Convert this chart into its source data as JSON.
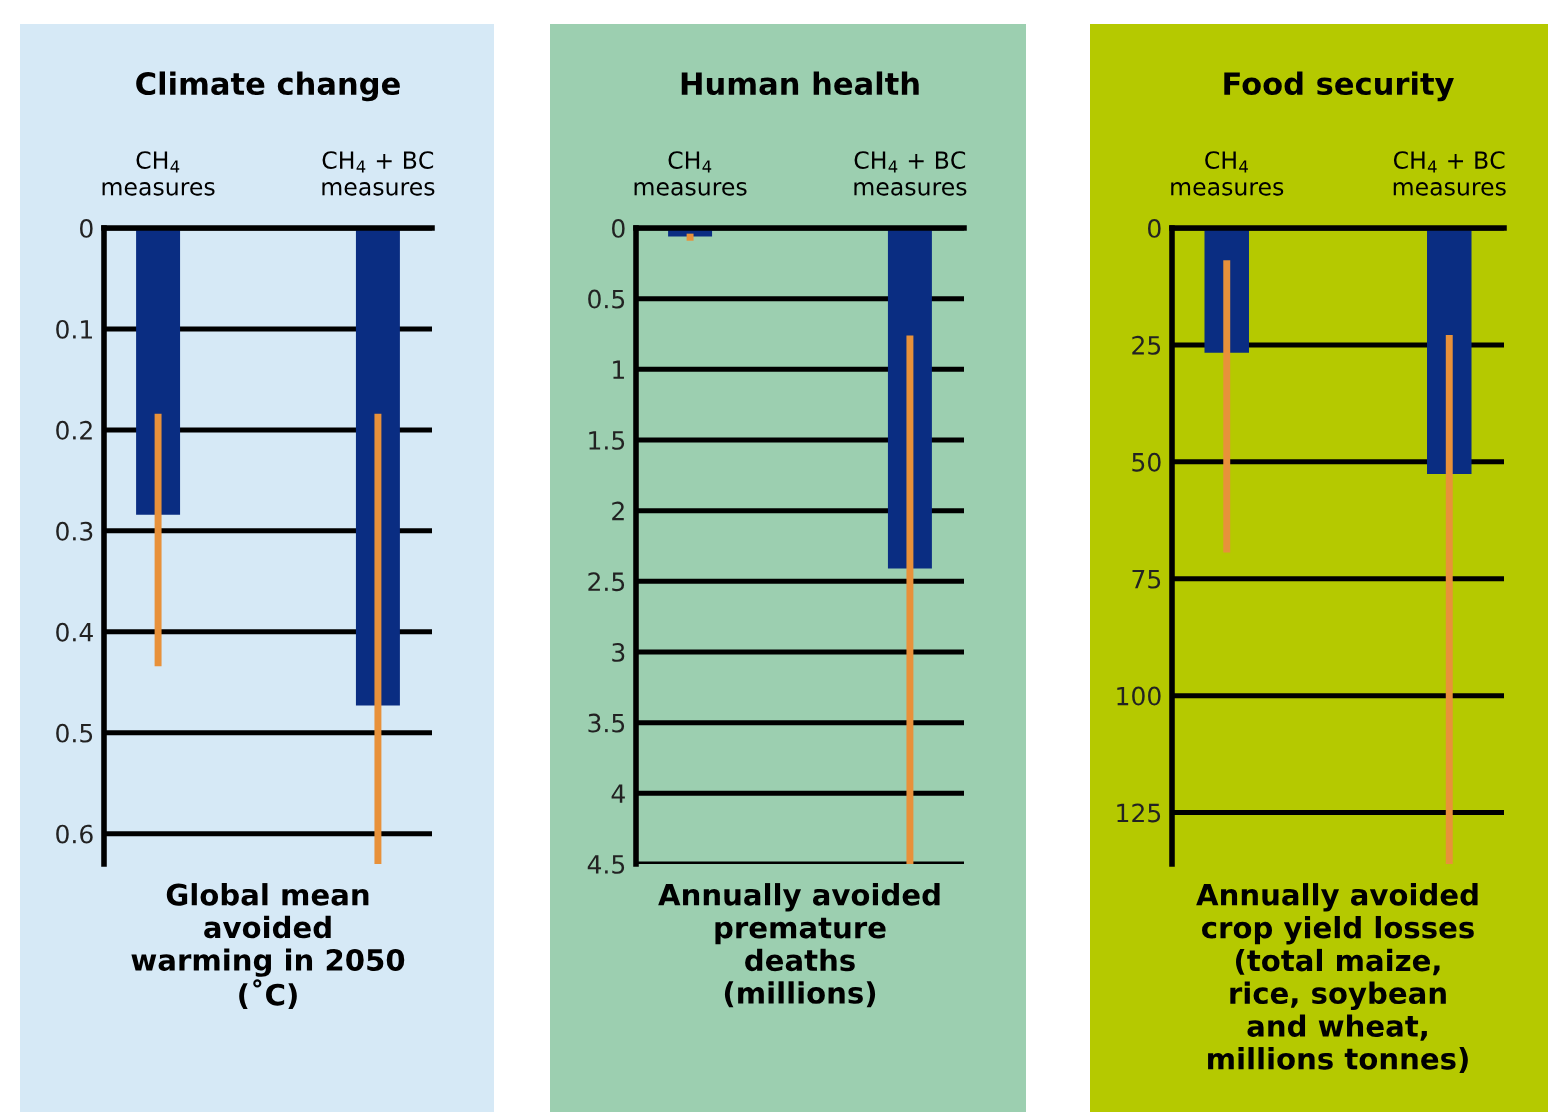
{
  "chart_data": [
    {
      "type": "bar",
      "title": "Climate change",
      "categories": [
        "CH$_{4}$\nmeasures",
        "CH$_{4}$ + BC\nmeasures"
      ],
      "values": [
        0.284,
        0.473
      ],
      "errors": [
        [
          0.184,
          0.434
        ],
        [
          0.184,
          0.63
        ]
      ],
      "color": "#0a2d82",
      "xlabel": "Global mean\navoided\nwarming in 2050\n(˚C)",
      "ylim": [
        0.63,
        0
      ],
      "yticks": [
        0,
        0.1,
        0.2,
        0.3,
        0.4,
        0.5,
        0.6
      ],
      "grid": "y"
    },
    {
      "type": "bar",
      "title": "Human health",
      "categories": [
        "CH$_{4}$\nmeasures",
        "CH$_{4}$ + BC\nmeasures"
      ],
      "values": [
        0.06,
        2.41
      ],
      "errors": [
        [
          0.04,
          0.09
        ],
        [
          0.76,
          4.5
        ]
      ],
      "color": "#0a2d82",
      "xlabel": "Annually avoided\npremature\ndeaths\n(millions)",
      "ylim": [
        4.5,
        0
      ],
      "yticks": [
        0,
        0.5,
        1,
        1.5,
        2,
        2.5,
        3,
        3.5,
        4,
        4.5
      ],
      "grid": "y"
    },
    {
      "type": "bar",
      "title": "Food security",
      "categories": [
        "CH$_{4}$\nmeasures",
        "CH$_{4}$ + BC\nmeasures"
      ],
      "values": [
        26.7,
        52.6
      ],
      "errors": [
        [
          6.9,
          69.4
        ],
        [
          22.9,
          136
        ]
      ],
      "color": "#0a2d82",
      "xlabel": "Annually avoided\ncrop yield losses\n(total maize,\nrice, soybean\nand wheat,\nmillions tonnes)",
      "ylim": [
        136,
        0
      ],
      "yticks": [
        0,
        25,
        50,
        75,
        100,
        125
      ],
      "grid": "y"
    }
  ]
}
